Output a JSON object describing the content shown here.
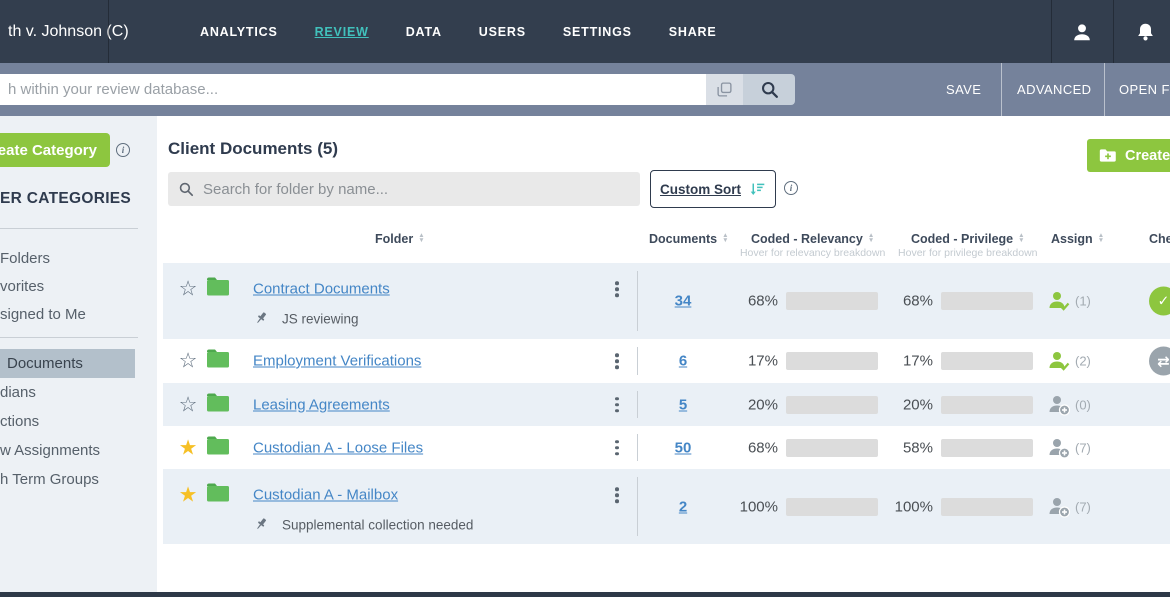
{
  "colors": {
    "navbar": "#333E4E",
    "searchbar": "#75829B",
    "accent_teal": "#41C1BC",
    "accent_green": "#8DC63F",
    "link_blue": "#4486C6",
    "row_alt": "#EAF0F6",
    "sidebar_bg": "#EDF1F5",
    "selected_bg": "#B3C0CB",
    "star_yellow": "#F6C026"
  },
  "topnav": {
    "case_name": "th v. Johnson (C)",
    "items": [
      {
        "label": "ANALYTICS",
        "active": false
      },
      {
        "label": "REVIEW",
        "active": true
      },
      {
        "label": "DATA",
        "active": false
      },
      {
        "label": "USERS",
        "active": false
      },
      {
        "label": "SETTINGS",
        "active": false
      },
      {
        "label": "SHARE",
        "active": false
      }
    ],
    "icons": [
      "user-icon",
      "bell-icon"
    ]
  },
  "searchbar": {
    "placeholder": "h within your review database...",
    "actions": [
      "SAVE",
      "ADVANCED",
      "OPEN FI"
    ]
  },
  "sidebar": {
    "create_button_label": "eate Category",
    "heading": "ER CATEGORIES",
    "group1": [
      "Folders",
      "vorites",
      "signed to Me"
    ],
    "group2": [
      {
        "label": "Documents",
        "selected": true
      },
      {
        "label": "dians",
        "selected": false
      },
      {
        "label": "ctions",
        "selected": false
      },
      {
        "label": "w Assignments",
        "selected": false
      },
      {
        "label": "h Term Groups",
        "selected": false
      }
    ]
  },
  "main": {
    "title": "Client Documents (5)",
    "folder_search_placeholder": "Search for folder by name...",
    "custom_sort_label": "Custom Sort",
    "create_button_label": "Create F",
    "table": {
      "headers": {
        "folder": "Folder",
        "documents": "Documents",
        "relevancy": "Coded - Relevancy",
        "relevancy_sub": "Hover for relevancy breakdown",
        "privilege": "Coded - Privilege",
        "privilege_sub": "Hover for privilege breakdown",
        "assign": "Assign",
        "check": "Che"
      },
      "rows": [
        {
          "name": "Contract Documents",
          "starred": false,
          "note": "JS reviewing",
          "documents": "34",
          "relevancy": {
            "label": "68%",
            "pct": 68
          },
          "privilege": {
            "label": "68%",
            "pct": 68
          },
          "assign": {
            "state": "assigned",
            "count": "(1)"
          },
          "status": "check"
        },
        {
          "name": "Employment Verifications",
          "starred": false,
          "note": null,
          "documents": "6",
          "relevancy": {
            "label": "17%",
            "pct": 17
          },
          "privilege": {
            "label": "17%",
            "pct": 17
          },
          "assign": {
            "state": "assigned",
            "count": "(2)"
          },
          "status": "swap"
        },
        {
          "name": "Leasing Agreements",
          "starred": false,
          "note": null,
          "documents": "5",
          "relevancy": {
            "label": "20%",
            "pct": 20
          },
          "privilege": {
            "label": "20%",
            "pct": 20
          },
          "assign": {
            "state": "add",
            "count": "(0)"
          },
          "status": null
        },
        {
          "name": "Custodian A - Loose Files",
          "starred": true,
          "note": null,
          "documents": "50",
          "relevancy": {
            "label": "68%",
            "pct": 68
          },
          "privilege": {
            "label": "58%",
            "pct": 58
          },
          "assign": {
            "state": "add",
            "count": "(7)"
          },
          "status": null
        },
        {
          "name": "Custodian A - Mailbox",
          "starred": true,
          "note": "Supplemental collection needed",
          "documents": "2",
          "relevancy": {
            "label": "100%",
            "pct": 100
          },
          "privilege": {
            "label": "100%",
            "pct": 100
          },
          "assign": {
            "state": "add",
            "count": "(7)"
          },
          "status": null
        }
      ]
    }
  }
}
